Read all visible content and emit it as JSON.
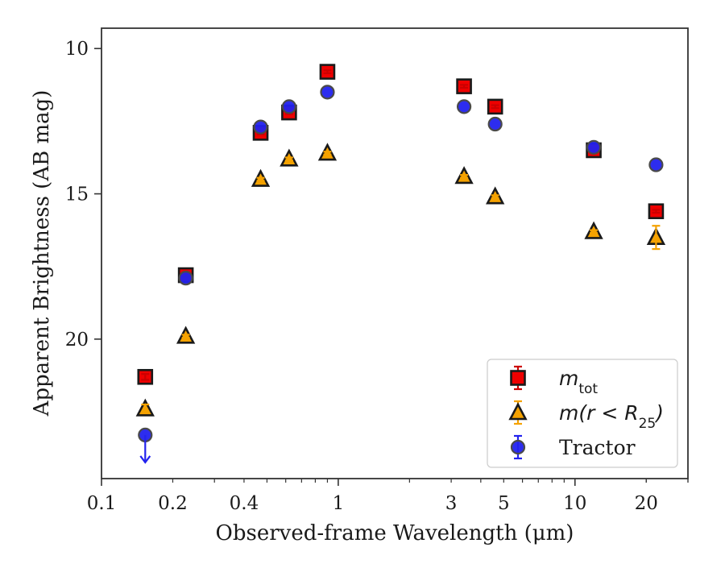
{
  "chart_data": {
    "type": "scatter",
    "xlabel": "Observed-frame Wavelength (μm)",
    "ylabel": "Apparent Brightness (AB mag)",
    "xscale": "log",
    "xlim": [
      0.1,
      30
    ],
    "ylim": [
      24.8,
      9.3
    ],
    "y_inverted": true,
    "x_ticks": [
      0.1,
      0.2,
      0.4,
      1,
      3,
      5,
      10,
      20
    ],
    "x_tick_labels": [
      "0.1",
      "0.2",
      "0.4",
      "1",
      "3",
      "5",
      "10",
      "20"
    ],
    "y_ticks": [
      10,
      15,
      20
    ],
    "y_tick_labels": [
      "10",
      "15",
      "20"
    ],
    "grid": false,
    "legend_position": "bottom-right",
    "series": [
      {
        "name": "m_tot",
        "label_main": "m",
        "label_sub": "tot",
        "marker": "square",
        "face_color": "#ee0000",
        "edge_color": "#1a1a1a",
        "error_color": "#cc0000",
        "points": [
          {
            "x": 0.153,
            "y": 21.3,
            "err": 0.1
          },
          {
            "x": 0.227,
            "y": 17.8,
            "err": 0.05
          },
          {
            "x": 0.47,
            "y": 12.9,
            "err": 0.05
          },
          {
            "x": 0.62,
            "y": 12.2,
            "err": 0.05
          },
          {
            "x": 0.9,
            "y": 10.8,
            "err": 0.05
          },
          {
            "x": 3.4,
            "y": 11.3,
            "err": 0.05
          },
          {
            "x": 4.6,
            "y": 12.0,
            "err": 0.05
          },
          {
            "x": 12.0,
            "y": 13.5,
            "err": 0.05
          },
          {
            "x": 22.0,
            "y": 15.6,
            "err": 0.05
          }
        ]
      },
      {
        "name": "m(r<R25)",
        "label_main": "m(r < R",
        "label_sub": "25",
        "label_tail": ")",
        "marker": "triangle",
        "face_color": "#f5a200",
        "edge_color": "#1a1a1a",
        "error_color": "#f5a200",
        "points": [
          {
            "x": 0.153,
            "y": 22.4,
            "err": 0.15
          },
          {
            "x": 0.227,
            "y": 19.9,
            "err": 0.05
          },
          {
            "x": 0.47,
            "y": 14.5,
            "err": 0.05
          },
          {
            "x": 0.62,
            "y": 13.8,
            "err": 0.05
          },
          {
            "x": 0.9,
            "y": 13.6,
            "err": 0.05
          },
          {
            "x": 3.4,
            "y": 14.4,
            "err": 0.05
          },
          {
            "x": 4.6,
            "y": 15.1,
            "err": 0.05
          },
          {
            "x": 12.0,
            "y": 16.3,
            "err": 0.05
          },
          {
            "x": 22.0,
            "y": 16.5,
            "err": 0.4
          }
        ]
      },
      {
        "name": "Tractor",
        "label_main": "Tractor",
        "marker": "circle",
        "face_color": "#2222ee",
        "edge_color": "#4a4a4a",
        "error_color": "#2222ee",
        "points": [
          {
            "x": 0.153,
            "y": 23.3,
            "upper_limit": true
          },
          {
            "x": 0.227,
            "y": 17.9
          },
          {
            "x": 0.47,
            "y": 12.7
          },
          {
            "x": 0.62,
            "y": 12.0
          },
          {
            "x": 0.9,
            "y": 11.5
          },
          {
            "x": 3.4,
            "y": 12.0
          },
          {
            "x": 4.6,
            "y": 12.6
          },
          {
            "x": 12.0,
            "y": 13.4
          },
          {
            "x": 22.0,
            "y": 14.0
          }
        ]
      }
    ]
  }
}
